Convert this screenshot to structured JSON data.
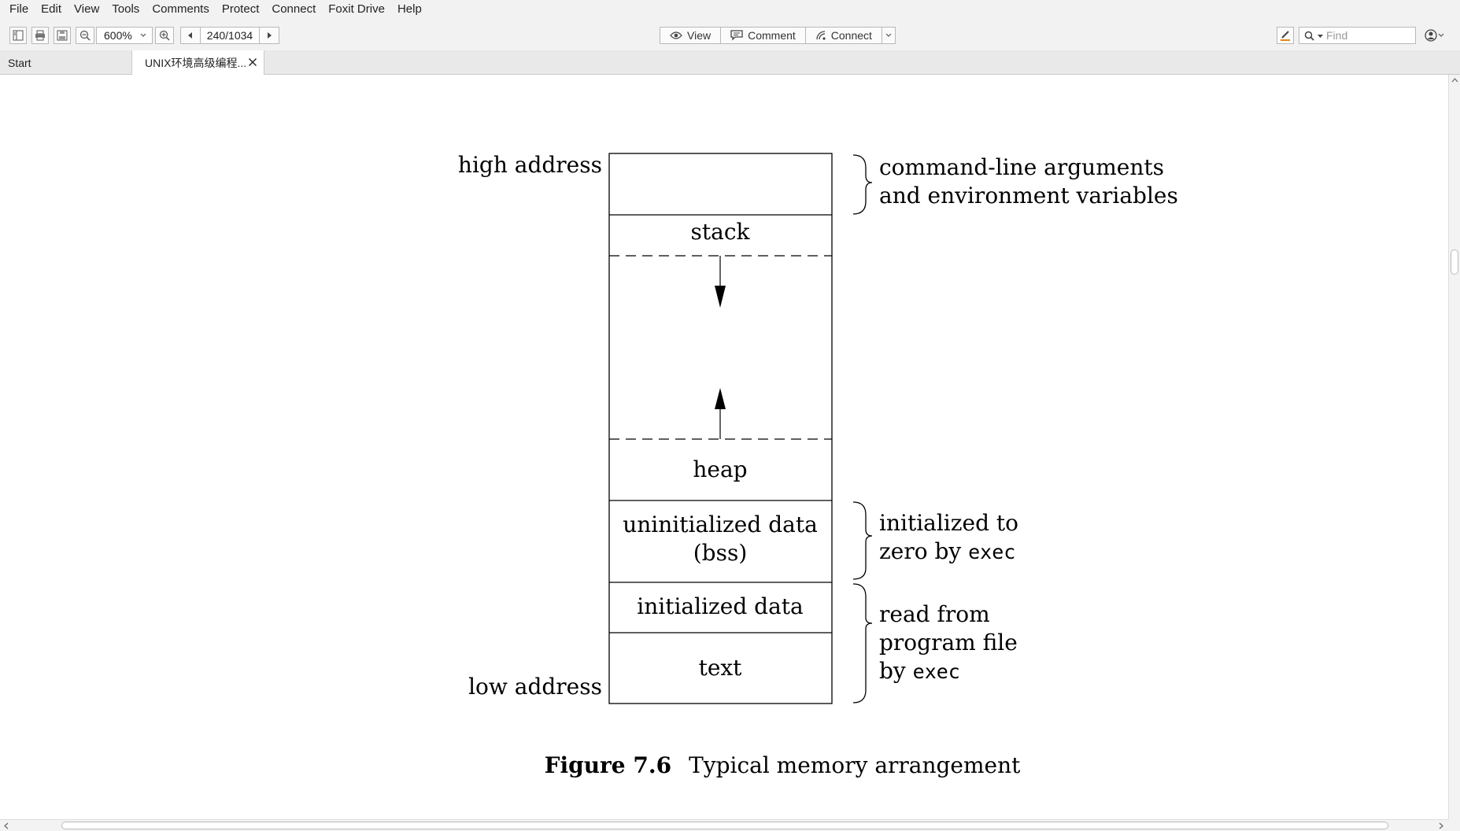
{
  "menu": [
    "File",
    "Edit",
    "View",
    "Tools",
    "Comments",
    "Protect",
    "Connect",
    "Foxit Drive",
    "Help"
  ],
  "toolbar": {
    "zoom": "600%",
    "page": "240/1034",
    "view_label": "View",
    "comment_label": "Comment",
    "connect_label": "Connect",
    "find_placeholder": "Find"
  },
  "tabs": {
    "start": "Start",
    "doc": "UNIX环境高级编程..."
  },
  "figure": {
    "high_address": "high address",
    "low_address": "low address",
    "segments": {
      "stack": "stack",
      "heap": "heap",
      "bss_line1": "uninitialized data",
      "bss_line2": "(bss)",
      "init_data": "initialized data",
      "text": "text"
    },
    "annotations": {
      "args_line1": "command-line arguments",
      "args_line2": "and environment variables",
      "zero_line1": "initialized to",
      "zero_line2_a": "zero by ",
      "zero_line2_b": "exec",
      "read_line1": "read from",
      "read_line2": "program file",
      "read_line3_a": "by ",
      "read_line3_b": "exec"
    },
    "caption_label": "Figure 7.6",
    "caption_text": "Typical memory arrangement"
  }
}
